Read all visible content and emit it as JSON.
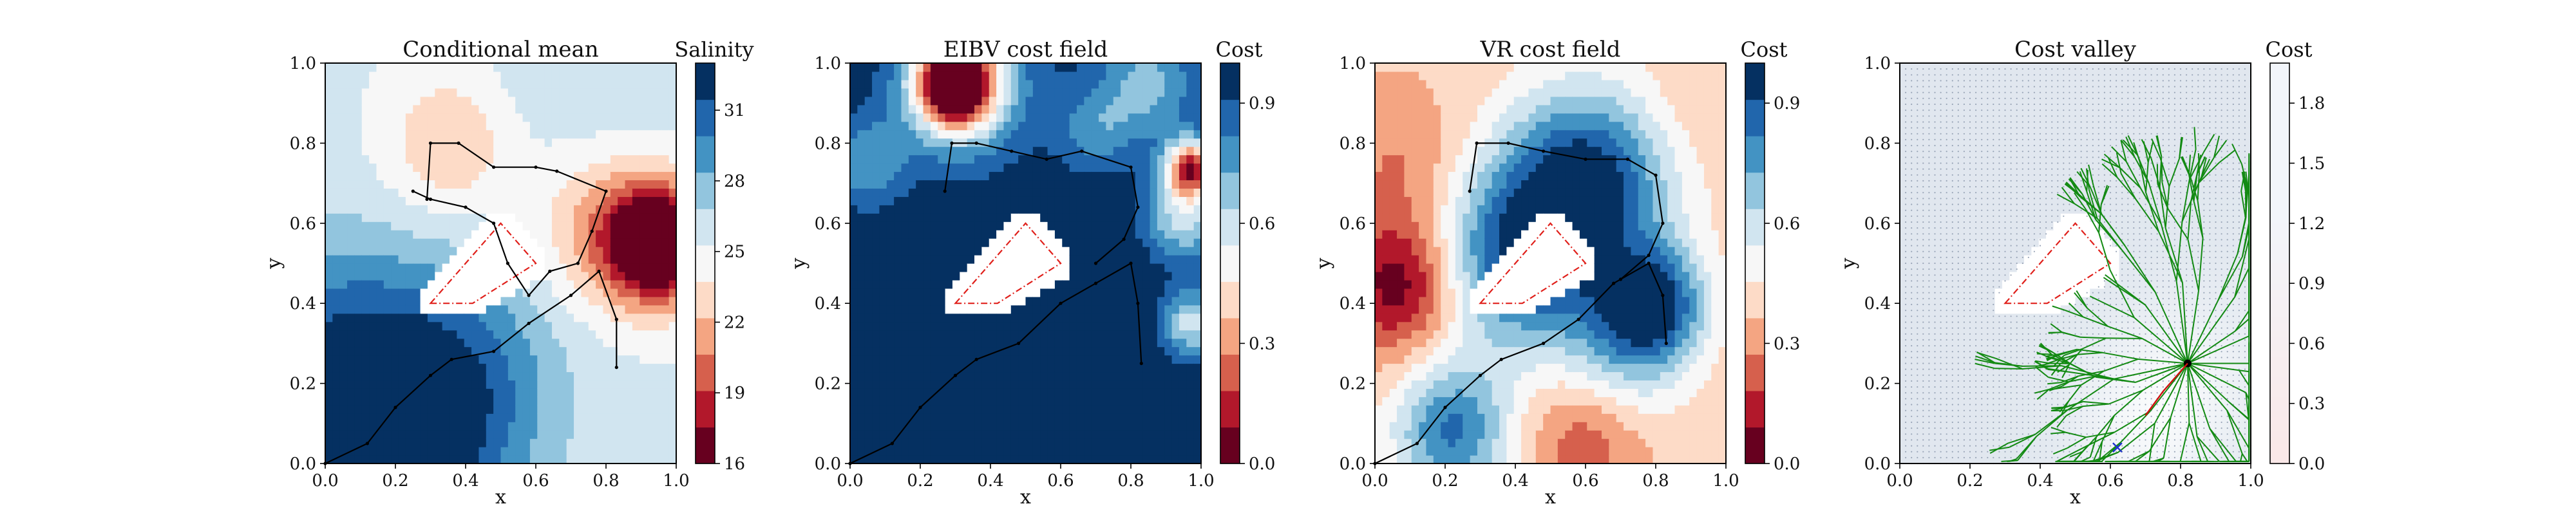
{
  "figure": {
    "panels": [
      {
        "id": "conditional-mean",
        "title": "Conditional mean",
        "xlabel": "x",
        "ylabel": "y",
        "colorbar_label": "Salinity",
        "colorbar_ticks": [
          "16",
          "19",
          "22",
          "25",
          "28",
          "31"
        ]
      },
      {
        "id": "eibv-cost-field",
        "title": "EIBV cost field",
        "xlabel": "x",
        "ylabel": "y",
        "colorbar_label": "Cost",
        "colorbar_ticks": [
          "0.0",
          "0.3",
          "0.6",
          "0.9"
        ]
      },
      {
        "id": "vr-cost-field",
        "title": "VR cost field",
        "xlabel": "x",
        "ylabel": "y",
        "colorbar_label": "Cost",
        "colorbar_ticks": [
          "0.0",
          "0.3",
          "0.6",
          "0.9"
        ]
      },
      {
        "id": "cost-valley",
        "title": "Cost valley",
        "xlabel": "x",
        "ylabel": "y",
        "colorbar_label": "Cost",
        "colorbar_ticks": [
          "0.0",
          "0.3",
          "0.6",
          "0.9",
          "1.2",
          "1.5",
          "1.8"
        ]
      }
    ],
    "axis_ticks": [
      "0.0",
      "0.2",
      "0.4",
      "0.6",
      "0.8",
      "1.0"
    ]
  },
  "chart_data": [
    {
      "type": "heatmap",
      "title": "Conditional mean",
      "xlabel": "x",
      "ylabel": "y",
      "xlim": [
        0,
        1
      ],
      "ylim": [
        0,
        1
      ],
      "colorbar": {
        "label": "Salinity",
        "range": [
          16,
          33
        ],
        "ticks": [
          16,
          19,
          22,
          25,
          28,
          31
        ]
      },
      "field": {
        "base": 25.5,
        "bumps": [
          {
            "x": 0.22,
            "y": 0.05,
            "amp": 7,
            "s": 0.22
          },
          {
            "x": 0.0,
            "y": 0.3,
            "amp": 4,
            "s": 0.2
          },
          {
            "x": 0.4,
            "y": 0.25,
            "amp": 3,
            "s": 0.2
          },
          {
            "x": 0.95,
            "y": 0.55,
            "amp": -12,
            "s": 0.1
          },
          {
            "x": 0.8,
            "y": 0.58,
            "amp": -4,
            "s": 0.14
          },
          {
            "x": 0.35,
            "y": 0.8,
            "amp": -3.5,
            "s": 0.12
          },
          {
            "x": 0.75,
            "y": 1.0,
            "amp": 1,
            "s": 0.2
          }
        ]
      },
      "path": [
        [
          0.0,
          0.0
        ],
        [
          0.12,
          0.05
        ],
        [
          0.2,
          0.14
        ],
        [
          0.3,
          0.22
        ],
        [
          0.36,
          0.26
        ],
        [
          0.48,
          0.28
        ],
        [
          0.58,
          0.35
        ],
        [
          0.7,
          0.42
        ],
        [
          0.78,
          0.48
        ],
        [
          0.83,
          0.36
        ],
        [
          0.83,
          0.24
        ]
      ],
      "path2": [
        [
          0.29,
          0.66
        ],
        [
          0.3,
          0.8
        ],
        [
          0.38,
          0.8
        ],
        [
          0.48,
          0.74
        ],
        [
          0.6,
          0.74
        ],
        [
          0.66,
          0.73
        ],
        [
          0.8,
          0.68
        ],
        [
          0.76,
          0.58
        ],
        [
          0.72,
          0.5
        ],
        [
          0.64,
          0.48
        ],
        [
          0.58,
          0.42
        ],
        [
          0.52,
          0.5
        ],
        [
          0.48,
          0.6
        ],
        [
          0.4,
          0.64
        ],
        [
          0.3,
          0.66
        ],
        [
          0.25,
          0.68
        ]
      ],
      "obstacle": [
        [
          0.3,
          0.4
        ],
        [
          0.5,
          0.6
        ],
        [
          0.6,
          0.5
        ],
        [
          0.42,
          0.4
        ]
      ]
    },
    {
      "type": "heatmap",
      "title": "EIBV cost field",
      "xlabel": "x",
      "ylabel": "y",
      "xlim": [
        0,
        1
      ],
      "ylim": [
        0,
        1
      ],
      "colorbar": {
        "label": "Cost",
        "range": [
          0,
          1
        ],
        "ticks": [
          0.0,
          0.3,
          0.6,
          0.9
        ]
      },
      "field": {
        "base": 1.0,
        "bumps": [
          {
            "x": 0.3,
            "y": 0.95,
            "amp": -1.05,
            "s": 0.08
          },
          {
            "x": 0.33,
            "y": 0.95,
            "amp": -0.3,
            "s": 0.15
          },
          {
            "x": 0.97,
            "y": 0.74,
            "amp": -0.8,
            "s": 0.05
          },
          {
            "x": 0.95,
            "y": 0.62,
            "amp": -0.4,
            "s": 0.08
          },
          {
            "x": 0.97,
            "y": 0.35,
            "amp": -0.4,
            "s": 0.06
          },
          {
            "x": 0.85,
            "y": 0.95,
            "amp": -0.3,
            "s": 0.1
          },
          {
            "x": 0.05,
            "y": 0.75,
            "amp": -0.25,
            "s": 0.08
          },
          {
            "x": 0.7,
            "y": 0.83,
            "amp": -0.2,
            "s": 0.08
          }
        ]
      },
      "path": [
        [
          0.0,
          0.0
        ],
        [
          0.12,
          0.05
        ],
        [
          0.2,
          0.14
        ],
        [
          0.3,
          0.22
        ],
        [
          0.36,
          0.26
        ],
        [
          0.48,
          0.3
        ],
        [
          0.6,
          0.4
        ],
        [
          0.7,
          0.45
        ],
        [
          0.8,
          0.5
        ],
        [
          0.82,
          0.4
        ],
        [
          0.83,
          0.25
        ]
      ],
      "path2": [
        [
          0.27,
          0.68
        ],
        [
          0.29,
          0.8
        ],
        [
          0.36,
          0.8
        ],
        [
          0.46,
          0.78
        ],
        [
          0.56,
          0.76
        ],
        [
          0.66,
          0.78
        ],
        [
          0.8,
          0.74
        ],
        [
          0.82,
          0.64
        ],
        [
          0.78,
          0.56
        ],
        [
          0.7,
          0.5
        ]
      ],
      "obstacle": [
        [
          0.3,
          0.4
        ],
        [
          0.5,
          0.6
        ],
        [
          0.6,
          0.5
        ],
        [
          0.42,
          0.4
        ]
      ]
    },
    {
      "type": "heatmap",
      "title": "VR cost field",
      "xlabel": "x",
      "ylabel": "y",
      "xlim": [
        0,
        1
      ],
      "ylim": [
        0,
        1
      ],
      "colorbar": {
        "label": "Cost",
        "range": [
          0,
          1
        ],
        "ticks": [
          0.0,
          0.3,
          0.6,
          0.9
        ]
      },
      "field": {
        "base": 0.38,
        "bumps": [
          {
            "x": 0.08,
            "y": 0.45,
            "amp": -0.38,
            "s": 0.12
          },
          {
            "x": 0.08,
            "y": 0.75,
            "amp": -0.12,
            "s": 0.12
          },
          {
            "x": 0.6,
            "y": 0.08,
            "amp": -0.2,
            "s": 0.12
          },
          {
            "x": 0.9,
            "y": 0.9,
            "amp": -0.05,
            "s": 0.1
          },
          {
            "x": 0.6,
            "y": 0.7,
            "amp": 0.6,
            "s": 0.17
          },
          {
            "x": 0.38,
            "y": 0.5,
            "amp": 0.45,
            "s": 0.16
          },
          {
            "x": 0.8,
            "y": 0.4,
            "amp": 0.45,
            "s": 0.1
          },
          {
            "x": 0.22,
            "y": 0.08,
            "amp": 0.45,
            "s": 0.12
          },
          {
            "x": 0.7,
            "y": 0.3,
            "amp": 0.3,
            "s": 0.14
          }
        ]
      },
      "path": [
        [
          0.0,
          0.0
        ],
        [
          0.12,
          0.05
        ],
        [
          0.2,
          0.14
        ],
        [
          0.3,
          0.22
        ],
        [
          0.36,
          0.26
        ],
        [
          0.48,
          0.3
        ],
        [
          0.58,
          0.36
        ],
        [
          0.68,
          0.45
        ],
        [
          0.78,
          0.5
        ],
        [
          0.82,
          0.42
        ],
        [
          0.83,
          0.3
        ]
      ],
      "path2": [
        [
          0.27,
          0.68
        ],
        [
          0.29,
          0.8
        ],
        [
          0.38,
          0.8
        ],
        [
          0.48,
          0.78
        ],
        [
          0.6,
          0.76
        ],
        [
          0.72,
          0.76
        ],
        [
          0.8,
          0.72
        ],
        [
          0.82,
          0.6
        ],
        [
          0.78,
          0.52
        ],
        [
          0.7,
          0.46
        ]
      ],
      "obstacle": [
        [
          0.3,
          0.4
        ],
        [
          0.5,
          0.6
        ],
        [
          0.6,
          0.5
        ],
        [
          0.42,
          0.4
        ]
      ]
    },
    {
      "type": "heatmap",
      "title": "Cost valley",
      "xlabel": "x",
      "ylabel": "y",
      "xlim": [
        0,
        1
      ],
      "ylim": [
        0,
        1
      ],
      "colorbar": {
        "label": "Cost",
        "range": [
          0,
          2
        ],
        "ticks": [
          0.0,
          0.3,
          0.6,
          0.9,
          1.2,
          1.5,
          1.8
        ]
      },
      "field": {
        "base": 1.55,
        "bumps": [
          {
            "x": 0.7,
            "y": 0.1,
            "amp": -0.35,
            "s": 0.15
          },
          {
            "x": 0.85,
            "y": 0.25,
            "amp": -0.2,
            "s": 0.15
          }
        ]
      },
      "tree_root": [
        0.82,
        0.25
      ],
      "tree_color": "#138a13",
      "red_path": [
        [
          0.82,
          0.25
        ],
        [
          0.75,
          0.18
        ],
        [
          0.7,
          0.12
        ]
      ],
      "start_marker": [
        0.62,
        0.04
      ],
      "obstacle": [
        [
          0.3,
          0.4
        ],
        [
          0.5,
          0.6
        ],
        [
          0.6,
          0.5
        ],
        [
          0.42,
          0.4
        ]
      ]
    }
  ],
  "colors": {
    "rdbu": [
      "#67001f",
      "#b2182b",
      "#d6604d",
      "#f4a582",
      "#fddbc7",
      "#f7f7f7",
      "#d1e5f0",
      "#92c5de",
      "#4393c3",
      "#2166ac",
      "#053061"
    ],
    "obstacle_line": "#e0201b",
    "path_line": "#000000",
    "start_marker": "#2030d0"
  }
}
